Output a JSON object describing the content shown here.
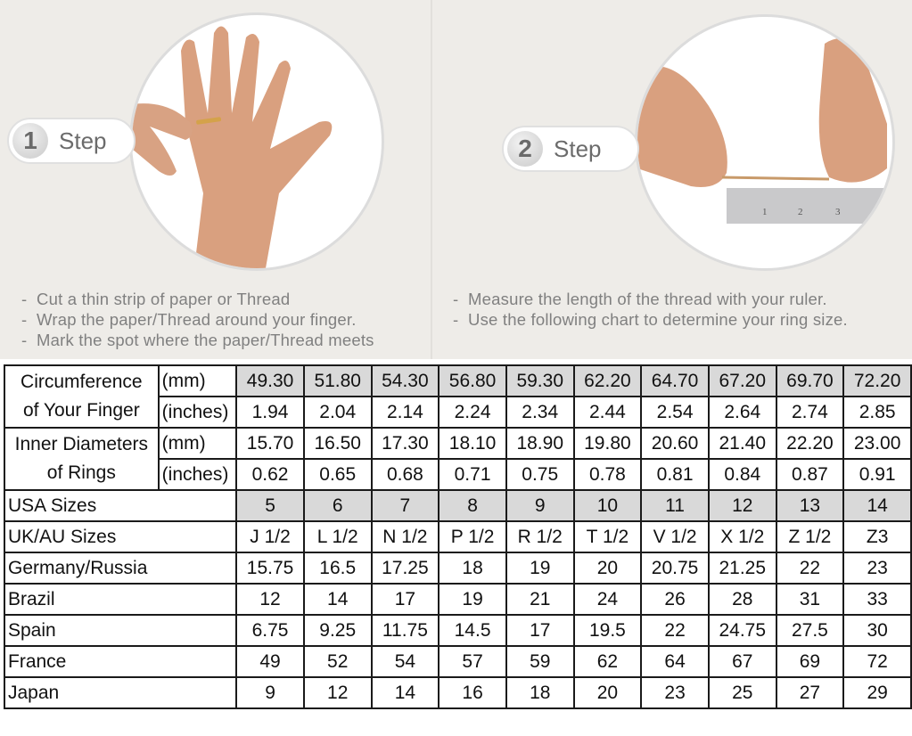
{
  "steps": [
    {
      "number": "1",
      "label": "Step",
      "instructions": [
        "Cut a thin strip of paper or Thread",
        "Wrap the paper/Thread around your finger.",
        "Mark the spot where the paper/Thread meets"
      ]
    },
    {
      "number": "2",
      "label": "Step",
      "instructions": [
        "Measure the length of the thread with your ruler.",
        "Use the following chart to determine your ring size."
      ]
    }
  ],
  "ruler_marks": [
    "1",
    "2",
    "3"
  ],
  "colors": {
    "background": "#eeece8",
    "highlight_cell": "#d9d9d9",
    "grid": "#1a1a1a",
    "skin": "#d9a07f"
  },
  "table": {
    "circumference_label": [
      "Circumference",
      "of Your Finger"
    ],
    "diameter_label": [
      "Inner Diameters",
      "of Rings"
    ],
    "unit_mm": "(mm)",
    "unit_inches": "(inches)",
    "circumference_mm": [
      "49.30",
      "51.80",
      "54.30",
      "56.80",
      "59.30",
      "62.20",
      "64.70",
      "67.20",
      "69.70",
      "72.20"
    ],
    "circumference_in": [
      "1.94",
      "2.04",
      "2.14",
      "2.24",
      "2.34",
      "2.44",
      "2.54",
      "2.64",
      "2.74",
      "2.85"
    ],
    "diameter_mm": [
      "15.70",
      "16.50",
      "17.30",
      "18.10",
      "18.90",
      "19.80",
      "20.60",
      "21.40",
      "22.20",
      "23.00"
    ],
    "diameter_in": [
      "0.62",
      "0.65",
      "0.68",
      "0.71",
      "0.75",
      "0.78",
      "0.81",
      "0.84",
      "0.87",
      "0.91"
    ],
    "country_rows": [
      {
        "label": "USA Sizes",
        "values": [
          "5",
          "6",
          "7",
          "8",
          "9",
          "10",
          "11",
          "12",
          "13",
          "14"
        ],
        "highlight": true
      },
      {
        "label": "UK/AU Sizes",
        "values": [
          "J 1/2",
          "L 1/2",
          "N 1/2",
          "P 1/2",
          "R 1/2",
          "T 1/2",
          "V 1/2",
          "X 1/2",
          "Z 1/2",
          "Z3"
        ]
      },
      {
        "label": "Germany/Russia",
        "values": [
          "15.75",
          "16.5",
          "17.25",
          "18",
          "19",
          "20",
          "20.75",
          "21.25",
          "22",
          "23"
        ]
      },
      {
        "label": "Brazil",
        "values": [
          "12",
          "14",
          "17",
          "19",
          "21",
          "24",
          "26",
          "28",
          "31",
          "33"
        ]
      },
      {
        "label": "Spain",
        "values": [
          "6.75",
          "9.25",
          "11.75",
          "14.5",
          "17",
          "19.5",
          "22",
          "24.75",
          "27.5",
          "30"
        ]
      },
      {
        "label": "France",
        "values": [
          "49",
          "52",
          "54",
          "57",
          "59",
          "62",
          "64",
          "67",
          "69",
          "72"
        ]
      },
      {
        "label": "Japan",
        "values": [
          "9",
          "12",
          "14",
          "16",
          "18",
          "20",
          "23",
          "25",
          "27",
          "29"
        ]
      }
    ]
  }
}
